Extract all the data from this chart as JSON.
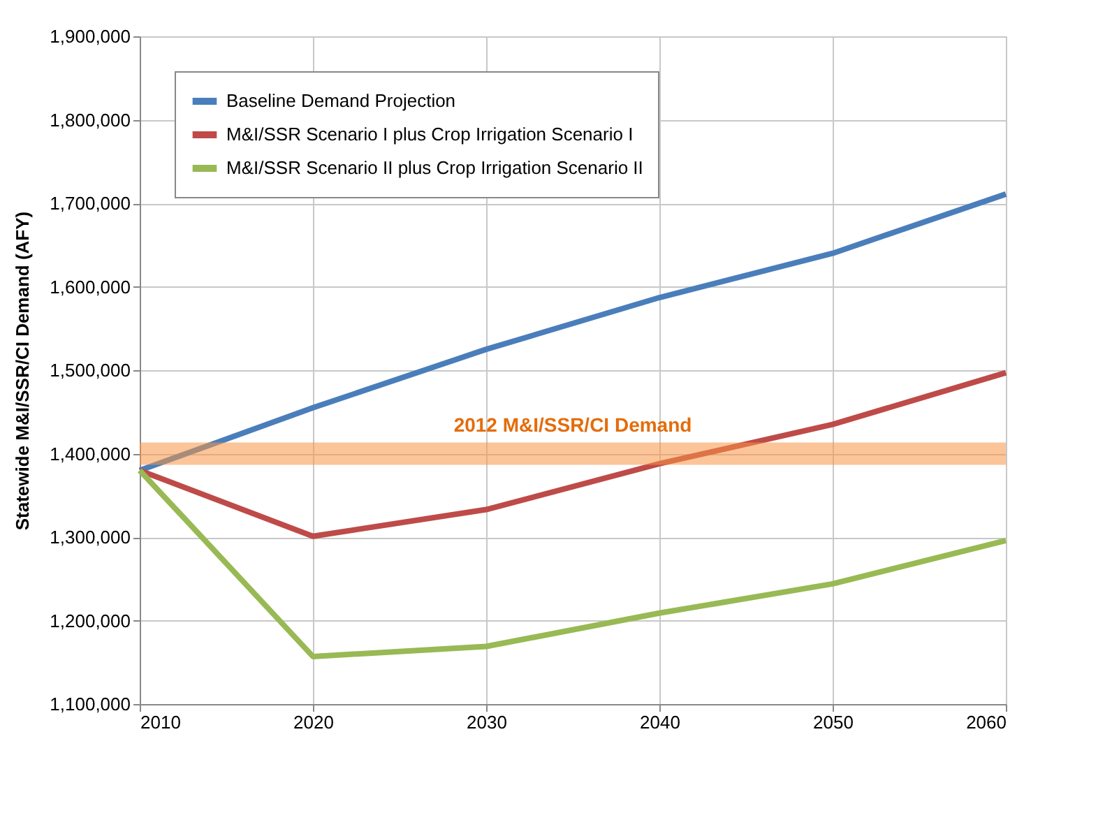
{
  "chart_data": {
    "type": "line",
    "ylabel": "Statewide M&I/SSR/CI Demand (AFY)",
    "x": [
      2010,
      2020,
      2030,
      2040,
      2050,
      2060
    ],
    "series": [
      {
        "name": "Baseline Demand Projection",
        "color": "#4a7ebb",
        "values": [
          1380000,
          1455000,
          1525000,
          1587000,
          1640000,
          1711000
        ]
      },
      {
        "name": "M&I/SSR Scenario I plus Crop Irrigation Scenario I",
        "color": "#be4b48",
        "values": [
          1380000,
          1301000,
          1333000,
          1388000,
          1435000,
          1497000
        ]
      },
      {
        "name": "M&I/SSR Scenario II plus Crop Irrigation Scenario II",
        "color": "#98b954",
        "values": [
          1380000,
          1157000,
          1169000,
          1209000,
          1244000,
          1296000
        ]
      }
    ],
    "xlim": [
      2010,
      2060
    ],
    "xticks": [
      2010,
      2020,
      2030,
      2040,
      2050,
      2060
    ],
    "ylim": [
      1100000,
      1900000
    ],
    "yticks": [
      {
        "value": 1100000,
        "label": "1,100,000"
      },
      {
        "value": 1200000,
        "label": "1,200,000"
      },
      {
        "value": 1300000,
        "label": "1,300,000"
      },
      {
        "value": 1400000,
        "label": "1,400,000"
      },
      {
        "value": 1500000,
        "label": "1,500,000"
      },
      {
        "value": 1600000,
        "label": "1,600,000"
      },
      {
        "value": 1700000,
        "label": "1,700,000"
      },
      {
        "value": 1800000,
        "label": "1,800,000"
      },
      {
        "value": 1900000,
        "label": "1,900,000"
      }
    ],
    "ref_lines": [
      {
        "axis": "y",
        "value": 1400000,
        "label": "2012 M&I/SSR/CI Demand",
        "color": "#f79646"
      }
    ],
    "grid": true,
    "legend": "top left",
    "marker": "none",
    "line_style": "solid"
  }
}
